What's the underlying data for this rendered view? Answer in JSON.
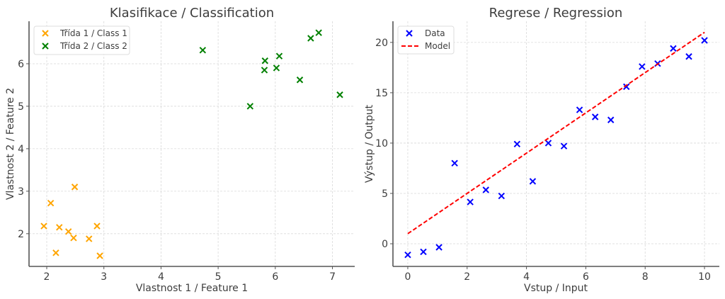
{
  "chart_data": [
    {
      "type": "scatter",
      "title": "Klasifikace / Classification",
      "xlabel": "Vlastnost 1 / Feature 1",
      "ylabel": "Vlastnost 2 / Feature 2",
      "xlim": [
        1.69,
        7.39
      ],
      "ylim": [
        1.23,
        7.0
      ],
      "xticks": [
        2,
        3,
        4,
        5,
        6,
        7
      ],
      "yticks": [
        2,
        3,
        4,
        5,
        6
      ],
      "grid": true,
      "legend_position": "top-left",
      "series": [
        {
          "name": "Třída 1 / Class 1",
          "color": "#ffa500",
          "marker": "x",
          "points": [
            [
              1.95,
              2.18
            ],
            [
              2.07,
              2.72
            ],
            [
              2.49,
              3.1
            ],
            [
              2.22,
              2.15
            ],
            [
              2.38,
              2.05
            ],
            [
              2.47,
              1.9
            ],
            [
              2.16,
              1.55
            ],
            [
              2.74,
              1.88
            ],
            [
              2.88,
              2.18
            ],
            [
              2.93,
              1.48
            ]
          ]
        },
        {
          "name": "Třída 2 / Class 2",
          "color": "#008000",
          "marker": "x",
          "points": [
            [
              4.73,
              6.32
            ],
            [
              5.56,
              5.0
            ],
            [
              5.82,
              6.07
            ],
            [
              5.81,
              5.85
            ],
            [
              6.07,
              6.18
            ],
            [
              6.02,
              5.9
            ],
            [
              6.43,
              5.62
            ],
            [
              6.62,
              6.6
            ],
            [
              6.76,
              6.73
            ],
            [
              7.13,
              5.27
            ]
          ]
        }
      ]
    },
    {
      "type": "scatter",
      "title": "Regrese / Regression",
      "xlabel": "Vstup / Input",
      "ylabel": "Výstup / Output",
      "xlim": [
        -0.5,
        10.5
      ],
      "ylim": [
        -2.25,
        22.1
      ],
      "xticks": [
        0,
        2,
        4,
        6,
        8,
        10
      ],
      "yticks": [
        0,
        5,
        10,
        15,
        20
      ],
      "grid": true,
      "legend_position": "top-left",
      "series": [
        {
          "name": "Data",
          "color": "#0000ff",
          "marker": "x",
          "x": [
            0,
            0.526,
            1.053,
            1.579,
            2.105,
            2.632,
            3.158,
            3.684,
            4.211,
            4.737,
            5.263,
            5.789,
            6.316,
            6.842,
            7.368,
            7.895,
            8.421,
            8.947,
            9.474,
            10.0
          ],
          "y": [
            -1.1,
            -0.8,
            -0.35,
            8.0,
            4.15,
            5.35,
            4.75,
            9.9,
            6.2,
            10.0,
            9.7,
            13.3,
            12.6,
            12.3,
            15.6,
            17.6,
            17.9,
            19.4,
            18.6,
            20.2
          ]
        },
        {
          "name": "Model",
          "color": "#ff0000",
          "line_style": "dashed",
          "x": [
            0,
            10
          ],
          "y": [
            1.0,
            21.0
          ]
        }
      ]
    }
  ]
}
